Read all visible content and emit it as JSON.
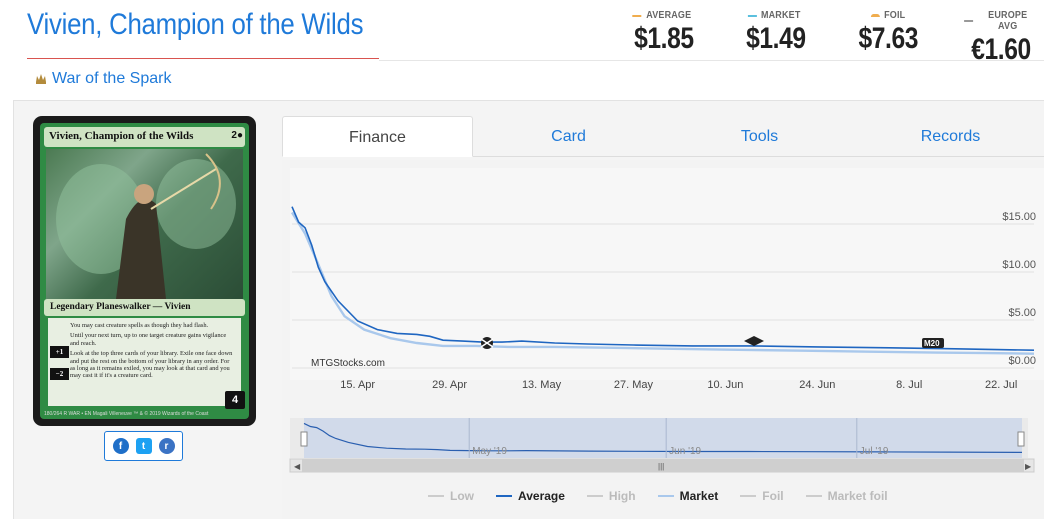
{
  "card": {
    "title": "Vivien, Champion of the Wilds",
    "set_name": "War of the Spark",
    "name_line": "Vivien, Champion of the Wilds",
    "mana_cost": "2●",
    "type_line": "Legendary Planeswalker — Vivien",
    "rules_static": "You may cast creature spells as though they had flash.",
    "rules_plus": "Until your next turn, up to one target creature gains vigilance and reach.",
    "rules_minus": "Look at the top three cards of your library. Exile one face down and put the rest on the bottom of your library in any order. For as long as it remains exiled, you may look at that card and you may cast it if it's a creature card.",
    "plus_cost": "+1",
    "minus_cost": "−2",
    "loyalty": "4",
    "footer": "180/264 R   WAR • EN   Magali Villeneuve   ™ & © 2019 Wizards of the Coast"
  },
  "prices": [
    {
      "label": "AVERAGE",
      "value": "$1.85",
      "color": "#f0ad4e"
    },
    {
      "label": "MARKET",
      "value": "$1.49",
      "color": "#5bc0de"
    },
    {
      "label": "FOIL",
      "value": "$7.63",
      "color": "#f0ad4e"
    },
    {
      "label": "EUROPE AVG",
      "value": "€1.60",
      "color": "#999999"
    }
  ],
  "tabs": [
    {
      "label": "Finance",
      "active": true
    },
    {
      "label": "Card",
      "active": false
    },
    {
      "label": "Tools",
      "active": false
    },
    {
      "label": "Records",
      "active": false
    }
  ],
  "social": {
    "facebook": "f",
    "twitter": "t",
    "reddit": "r"
  },
  "chart_data": {
    "type": "line",
    "watermark": "MTGStocks.com",
    "x_ticks": [
      "15. Apr",
      "29. Apr",
      "13. May",
      "27. May",
      "10. Jun",
      "24. Jun",
      "8. Jul",
      "22. Jul"
    ],
    "y_ticks": [
      "$15.00",
      "$10.00",
      "$5.00",
      "$0.00"
    ],
    "ylim": [
      0,
      17.5
    ],
    "x_range": [
      "2019-04-05",
      "2019-07-27"
    ],
    "navigator_labels": [
      "May '19",
      "Jun '19",
      "Jul '19"
    ],
    "series": [
      {
        "name": "Average",
        "color": "#1f66c1",
        "x": [
          "2019-04-05",
          "2019-04-06",
          "2019-04-07",
          "2019-04-08",
          "2019-04-09",
          "2019-04-10",
          "2019-04-12",
          "2019-04-15",
          "2019-04-18",
          "2019-04-21",
          "2019-04-24",
          "2019-04-26",
          "2019-04-28",
          "2019-05-01",
          "2019-05-04",
          "2019-05-07",
          "2019-05-10",
          "2019-05-15",
          "2019-05-20",
          "2019-05-27",
          "2019-06-05",
          "2019-06-14",
          "2019-06-24",
          "2019-07-05",
          "2019-07-15",
          "2019-07-27"
        ],
        "values": [
          16.8,
          15.2,
          14.6,
          12.8,
          10.5,
          9.0,
          7.0,
          4.9,
          4.0,
          3.6,
          3.5,
          3.3,
          2.9,
          2.8,
          2.7,
          2.7,
          2.8,
          2.6,
          2.5,
          2.4,
          2.3,
          2.3,
          2.2,
          2.1,
          2.0,
          1.85
        ]
      },
      {
        "name": "Market",
        "color": "#a9c8ec",
        "x": [
          "2019-04-05",
          "2019-04-07",
          "2019-04-09",
          "2019-04-11",
          "2019-04-13",
          "2019-04-16",
          "2019-04-20",
          "2019-04-24",
          "2019-04-28",
          "2019-05-03",
          "2019-05-08",
          "2019-05-15",
          "2019-05-24",
          "2019-06-02",
          "2019-06-12",
          "2019-06-22",
          "2019-07-02",
          "2019-07-12",
          "2019-07-20",
          "2019-07-27"
        ],
        "values": [
          16.2,
          14.0,
          10.8,
          7.5,
          5.4,
          4.0,
          3.1,
          2.6,
          2.3,
          2.3,
          2.2,
          2.2,
          2.1,
          2.0,
          1.9,
          1.8,
          1.7,
          1.6,
          1.55,
          1.49
        ]
      }
    ],
    "legend": [
      {
        "name": "Low",
        "visible": false,
        "color": "#cccccc"
      },
      {
        "name": "Average",
        "visible": true,
        "color": "#1f66c1"
      },
      {
        "name": "High",
        "visible": false,
        "color": "#cccccc"
      },
      {
        "name": "Market",
        "visible": true,
        "color": "#a9c8ec"
      },
      {
        "name": "Foil",
        "visible": false,
        "color": "#cccccc"
      },
      {
        "name": "Market foil",
        "visible": false,
        "color": "#cccccc"
      }
    ]
  }
}
